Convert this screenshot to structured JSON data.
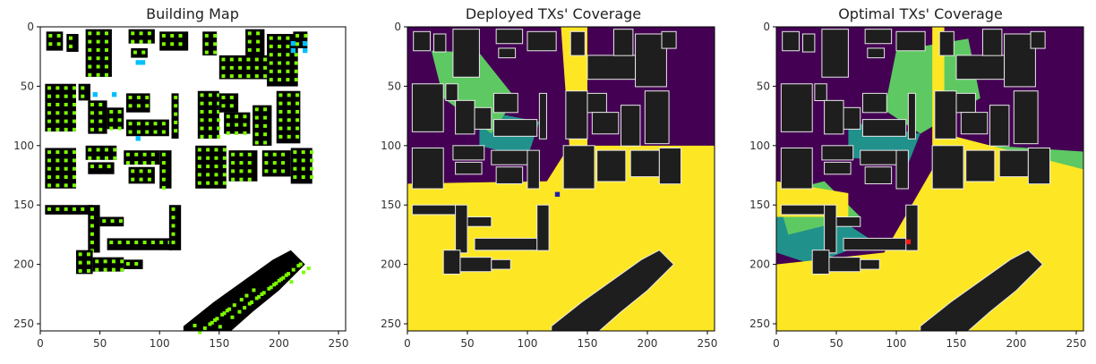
{
  "figure": {
    "panels": [
      {
        "title": "Building Map"
      },
      {
        "title": "Deployed TXs' Coverage"
      },
      {
        "title": "Optimal TXs' Coverage"
      }
    ]
  },
  "chart_data": [
    {
      "type": "heatmap",
      "title": "Building Map",
      "xlim": [
        0,
        256
      ],
      "ylim": [
        256,
        0
      ],
      "xticks": [
        0,
        50,
        100,
        150,
        200,
        250
      ],
      "yticks": [
        0,
        50,
        100,
        150,
        200,
        250
      ],
      "grid": false,
      "colors": {
        "background": "#ffffff",
        "building": "#000000",
        "candidate": "#7cfc00",
        "deployed": "#00bfff"
      },
      "deployed_tx_points": [
        [
          80,
          28
        ],
        [
          84,
          28
        ],
        [
          44,
          55
        ],
        [
          60,
          55
        ],
        [
          80,
          92
        ],
        [
          210,
          12
        ],
        [
          220,
          12
        ],
        [
          210,
          18
        ],
        [
          220,
          18
        ]
      ]
    },
    {
      "type": "heatmap",
      "title": "Deployed TXs' Coverage",
      "xlim": [
        0,
        256
      ],
      "ylim": [
        256,
        0
      ],
      "xticks": [
        0,
        50,
        100,
        150,
        200,
        250
      ],
      "yticks": [
        0,
        50,
        100,
        150,
        200,
        250
      ],
      "grid": false,
      "colormap": [
        "#440154",
        "#21918c",
        "#5ec962",
        "#fde725"
      ],
      "tx_marker": {
        "x": 123,
        "y": 139,
        "color": "#1f1fa8"
      }
    },
    {
      "type": "heatmap",
      "title": "Optimal TXs' Coverage",
      "xlim": [
        0,
        256
      ],
      "ylim": [
        256,
        0
      ],
      "xticks": [
        0,
        50,
        100,
        150,
        200,
        250
      ],
      "yticks": [
        0,
        50,
        100,
        150,
        200,
        250
      ],
      "grid": false,
      "colormap": [
        "#440154",
        "#21918c",
        "#5ec962",
        "#fde725"
      ],
      "tx_marker": {
        "x": 108,
        "y": 179,
        "color": "#ff1a1a"
      }
    }
  ]
}
